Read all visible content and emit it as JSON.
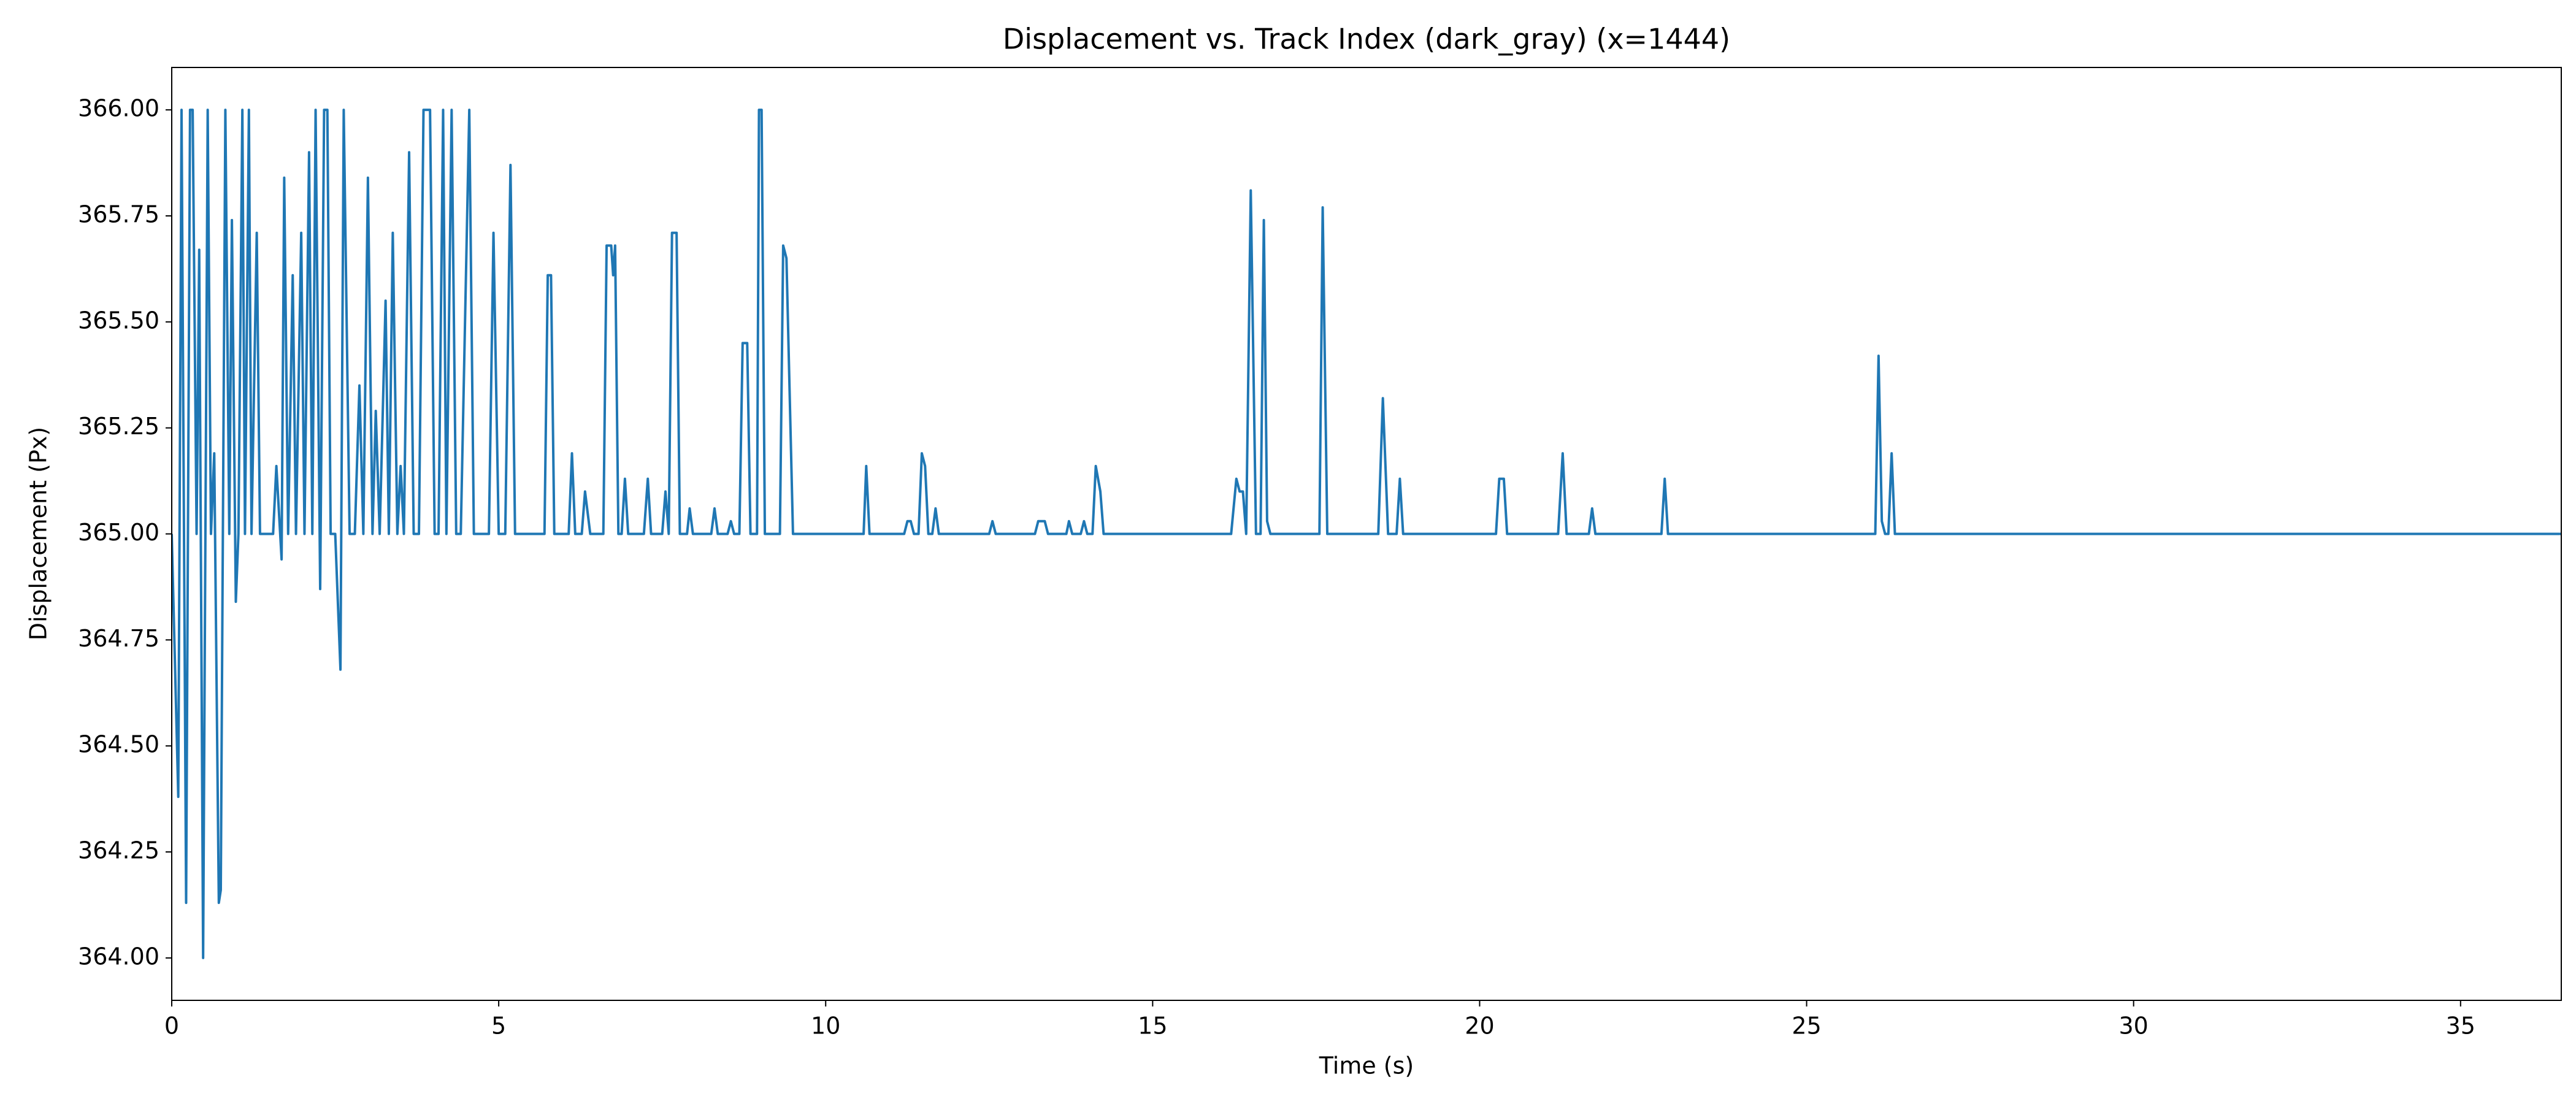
{
  "chart_data": {
    "type": "line",
    "title": "Displacement vs. Track Index (dark_gray) (x=1444)",
    "x_label": "Time (s)",
    "y_label": "Displacement (Px)",
    "color": "#1f77b4",
    "grid": false,
    "xlim": [
      0,
      36.54
    ],
    "ylim": [
      363.9,
      366.1
    ],
    "xticks": [
      0,
      5,
      10,
      15,
      20,
      25,
      30,
      35
    ],
    "yticks": [
      {
        "value": 364,
        "label": "364.00"
      },
      {
        "value": 364.25,
        "label": "364.25"
      },
      {
        "value": 364.5,
        "label": "364.50"
      },
      {
        "value": 364.75,
        "label": "364.75"
      },
      {
        "value": 365,
        "label": "365.00"
      },
      {
        "value": 365.25,
        "label": "365.25"
      },
      {
        "value": 365.5,
        "label": "365.50"
      },
      {
        "value": 365.75,
        "label": "365.75"
      },
      {
        "value": 366,
        "label": "366.00"
      }
    ],
    "x": [
      0,
      0.1,
      0.15,
      0.22,
      0.28,
      0.32,
      0.38,
      0.42,
      0.48,
      0.55,
      0.6,
      0.65,
      0.72,
      0.75,
      0.82,
      0.88,
      0.92,
      0.98,
      1.02,
      1.08,
      1.12,
      1.18,
      1.22,
      1.3,
      1.35,
      1.55,
      1.6,
      1.68,
      1.72,
      1.78,
      1.85,
      1.9,
      1.98,
      2.03,
      2.1,
      2.15,
      2.2,
      2.27,
      2.33,
      2.38,
      2.43,
      2.5,
      2.58,
      2.63,
      2.72,
      2.8,
      2.87,
      2.93,
      3.0,
      3.07,
      3.12,
      3.18,
      3.27,
      3.32,
      3.38,
      3.45,
      3.5,
      3.55,
      3.63,
      3.7,
      3.78,
      3.85,
      3.95,
      4.02,
      4.08,
      4.15,
      4.2,
      4.28,
      4.35,
      4.42,
      4.55,
      4.62,
      4.85,
      4.92,
      5.0,
      5.1,
      5.18,
      5.25,
      5.7,
      5.75,
      5.8,
      5.85,
      6.07,
      6.12,
      6.17,
      6.27,
      6.32,
      6.4,
      6.6,
      6.65,
      6.72,
      6.75,
      6.78,
      6.83,
      6.88,
      6.93,
      6.98,
      7.22,
      7.28,
      7.33,
      7.5,
      7.55,
      7.6,
      7.65,
      7.72,
      7.77,
      7.88,
      7.92,
      7.97,
      8.25,
      8.3,
      8.35,
      8.5,
      8.55,
      8.6,
      8.68,
      8.73,
      8.8,
      8.85,
      8.95,
      8.98,
      9.02,
      9.07,
      9.3,
      9.35,
      9.4,
      9.5,
      10.58,
      10.62,
      10.67,
      11.2,
      11.25,
      11.3,
      11.35,
      11.42,
      11.47,
      11.52,
      11.57,
      11.63,
      11.68,
      11.73,
      12.5,
      12.55,
      12.6,
      13.2,
      13.25,
      13.35,
      13.4,
      13.68,
      13.72,
      13.77,
      13.9,
      13.95,
      14.0,
      14.08,
      14.13,
      14.2,
      14.25,
      16.2,
      16.28,
      16.33,
      16.38,
      16.43,
      16.5,
      16.58,
      16.65,
      16.7,
      16.75,
      16.8,
      17.55,
      17.6,
      17.67,
      18.45,
      18.52,
      18.6,
      18.73,
      18.78,
      18.83,
      20.25,
      20.3,
      20.37,
      20.42,
      21.2,
      21.27,
      21.33,
      21.67,
      21.72,
      21.77,
      22.78,
      22.83,
      22.88,
      26.05,
      26.1,
      26.15,
      26.2,
      26.25,
      26.3,
      26.35,
      36.54
    ],
    "values": [
      365,
      364.38,
      366,
      364.13,
      366,
      366,
      365,
      365.67,
      364,
      366,
      365,
      365.19,
      364.13,
      364.16,
      366,
      365,
      365.74,
      364.84,
      365,
      366,
      365,
      366,
      365,
      365.71,
      365,
      365,
      365.16,
      364.94,
      365.84,
      365,
      365.61,
      365,
      365.71,
      365,
      365.9,
      365,
      366,
      364.87,
      366,
      366,
      365,
      365,
      364.68,
      366,
      365,
      365,
      365.35,
      365,
      365.84,
      365,
      365.29,
      365,
      365.55,
      365,
      365.71,
      365,
      365.16,
      365,
      365.9,
      365,
      365,
      366,
      366,
      365,
      365,
      366,
      365,
      366,
      365,
      365,
      366,
      365,
      365,
      365.71,
      365,
      365,
      365.87,
      365,
      365,
      365.61,
      365.61,
      365,
      365,
      365.19,
      365,
      365,
      365.1,
      365,
      365,
      365.68,
      365.68,
      365.61,
      365.68,
      365,
      365,
      365.13,
      365,
      365,
      365.13,
      365,
      365,
      365.1,
      365,
      365.71,
      365.71,
      365,
      365,
      365.06,
      365,
      365,
      365.06,
      365,
      365,
      365.03,
      365,
      365,
      365.45,
      365.45,
      365,
      365,
      366,
      366,
      365,
      365,
      365.68,
      365.65,
      365,
      365,
      365.16,
      365,
      365,
      365.03,
      365.03,
      365,
      365,
      365.19,
      365.16,
      365,
      365,
      365.06,
      365,
      365,
      365.03,
      365,
      365,
      365.03,
      365.03,
      365,
      365,
      365.03,
      365,
      365,
      365.03,
      365,
      365,
      365.16,
      365.1,
      365,
      365,
      365.13,
      365.1,
      365.1,
      365,
      365.81,
      365,
      365,
      365.74,
      365.03,
      365,
      365,
      365.77,
      365,
      365,
      365.32,
      365,
      365,
      365.13,
      365,
      365,
      365.13,
      365.13,
      365,
      365,
      365.19,
      365,
      365,
      365.06,
      365,
      365,
      365.13,
      365,
      365,
      365.42,
      365.03,
      365,
      365,
      365.19,
      365,
      365
    ]
  }
}
